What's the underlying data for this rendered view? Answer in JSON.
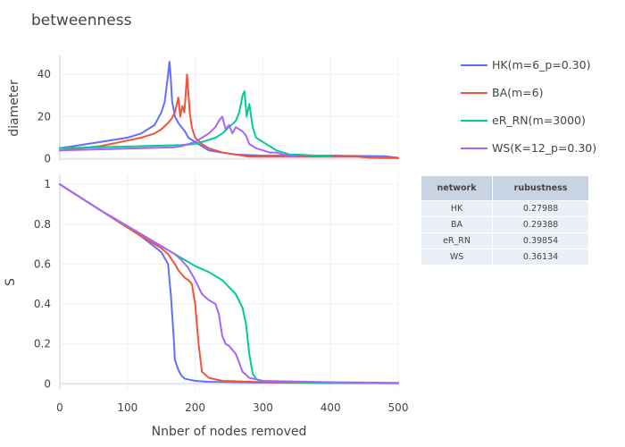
{
  "title": "betweenness",
  "colors": {
    "HK": "#636efa",
    "BA": "#ef553b",
    "eR_RN": "#00cc96",
    "WS": "#ab63fa",
    "grid": "#ebf0f8",
    "zeroline": "#e1e6ee",
    "table_header": "#c8d4e3",
    "table_cell": "#ebf0f8"
  },
  "legend": [
    {
      "name": "HK(m=6_p=0.30)",
      "color": "#636efa"
    },
    {
      "name": "BA(m=6)",
      "color": "#ef553b"
    },
    {
      "name": "eR_RN(m=3000)",
      "color": "#00cc96"
    },
    {
      "name": "WS(K=12_p=0.30)",
      "color": "#ab63fa"
    }
  ],
  "table": {
    "headers": [
      "network",
      "rubustness"
    ],
    "rows": [
      [
        "HK",
        "0.27988"
      ],
      [
        "BA",
        "0.29388"
      ],
      [
        "eR_RN",
        "0.39854"
      ],
      [
        "WS",
        "0.36134"
      ]
    ]
  },
  "chart_data": [
    {
      "type": "line",
      "xlabel": "",
      "ylabel": "diameter",
      "xlim": [
        0,
        500
      ],
      "ylim": [
        -1,
        49
      ],
      "xticks": [
        0,
        100,
        200,
        300,
        400,
        500
      ],
      "yticks": [
        0,
        20,
        40
      ],
      "grid": true,
      "series": [
        {
          "name": "HK(m=6_p=0.30)",
          "color": "#636efa",
          "x": [
            0,
            20,
            40,
            60,
            80,
            100,
            110,
            120,
            130,
            140,
            145,
            150,
            155,
            158,
            160,
            162,
            164,
            166,
            168,
            170,
            175,
            180,
            185,
            190,
            200,
            210,
            220,
            240,
            260,
            300,
            350,
            400,
            480,
            500
          ],
          "y": [
            5,
            6,
            7,
            8,
            9,
            10,
            11,
            12,
            14,
            16,
            19,
            22,
            27,
            35,
            40,
            46,
            38,
            27,
            24,
            20,
            17,
            15,
            13,
            10,
            8,
            6,
            4,
            3,
            2,
            1.5,
            1.5,
            1.5,
            1.2,
            0.5
          ]
        },
        {
          "name": "BA(m=6)",
          "color": "#ef553b",
          "x": [
            0,
            30,
            60,
            90,
            120,
            140,
            150,
            160,
            165,
            170,
            175,
            178,
            181,
            184,
            188,
            192,
            195,
            200,
            210,
            220,
            240,
            260,
            280,
            300,
            400,
            440,
            460,
            500
          ],
          "y": [
            4,
            5,
            6,
            8,
            10,
            12,
            14,
            17,
            19,
            22,
            29,
            20,
            25,
            22,
            40,
            22,
            15,
            10,
            7,
            5,
            3,
            2,
            1,
            1,
            1,
            1,
            0.5,
            0.3
          ]
        },
        {
          "name": "eR_RN(m=3000)",
          "color": "#00cc96",
          "x": [
            0,
            60,
            120,
            180,
            200,
            210,
            220,
            230,
            240,
            250,
            260,
            265,
            270,
            273,
            276,
            280,
            285,
            290,
            300,
            310,
            320,
            330,
            340,
            350,
            380,
            400
          ],
          "y": [
            5,
            5.5,
            6,
            6.5,
            7,
            8,
            9,
            10,
            12,
            15,
            18,
            22,
            30,
            32,
            20,
            26,
            15,
            10,
            8,
            6,
            4,
            3,
            2,
            2,
            1.5,
            1
          ]
        },
        {
          "name": "WS(K=12_p=0.30)",
          "color": "#ab63fa",
          "x": [
            0,
            60,
            120,
            170,
            180,
            190,
            200,
            210,
            220,
            230,
            235,
            240,
            245,
            250,
            255,
            260,
            265,
            270,
            275,
            280,
            290,
            300,
            310,
            320,
            330,
            350
          ],
          "y": [
            4,
            4.5,
            5,
            5.5,
            6,
            7,
            8,
            10,
            12,
            15,
            18,
            20,
            14,
            16,
            12,
            15,
            14,
            13,
            11,
            7,
            5,
            4,
            3,
            3,
            2,
            1
          ]
        }
      ]
    },
    {
      "type": "line",
      "xlabel": "Nnber of nodes removed",
      "ylabel": "S",
      "xlim": [
        0,
        500
      ],
      "ylim": [
        -0.03,
        1.05
      ],
      "xticks": [
        0,
        100,
        200,
        300,
        400,
        500
      ],
      "yticks": [
        0,
        0.2,
        0.4,
        0.6,
        0.8,
        1
      ],
      "grid": true,
      "series": [
        {
          "name": "HK(m=6_p=0.30)",
          "color": "#636efa",
          "x": [
            0,
            60,
            120,
            150,
            160,
            162,
            164,
            166,
            168,
            170,
            175,
            180,
            185,
            200,
            220,
            300,
            400,
            500
          ],
          "y": [
            1,
            0.87,
            0.74,
            0.66,
            0.6,
            0.52,
            0.45,
            0.35,
            0.25,
            0.12,
            0.07,
            0.04,
            0.025,
            0.015,
            0.01,
            0.006,
            0.004,
            0.003
          ]
        },
        {
          "name": "BA(m=6)",
          "color": "#ef553b",
          "x": [
            0,
            60,
            120,
            140,
            150,
            160,
            170,
            175,
            180,
            185,
            190,
            195,
            200,
            205,
            210,
            220,
            240,
            300,
            400,
            500
          ],
          "y": [
            1,
            0.87,
            0.74,
            0.7,
            0.68,
            0.65,
            0.6,
            0.57,
            0.55,
            0.53,
            0.52,
            0.5,
            0.4,
            0.2,
            0.06,
            0.03,
            0.015,
            0.008,
            0.005,
            0.003
          ]
        },
        {
          "name": "eR_RN(m=3000)",
          "color": "#00cc96",
          "x": [
            0,
            60,
            120,
            180,
            200,
            220,
            240,
            260,
            270,
            275,
            280,
            285,
            290,
            295,
            300,
            320,
            350,
            400,
            500
          ],
          "y": [
            1,
            0.87,
            0.75,
            0.63,
            0.59,
            0.56,
            0.52,
            0.45,
            0.38,
            0.3,
            0.15,
            0.05,
            0.025,
            0.015,
            0.012,
            0.01,
            0.008,
            0.005,
            0.003
          ]
        },
        {
          "name": "WS(K=12_p=0.30)",
          "color": "#ab63fa",
          "x": [
            0,
            60,
            120,
            150,
            170,
            180,
            190,
            195,
            200,
            210,
            220,
            225,
            230,
            235,
            240,
            245,
            250,
            260,
            270,
            280,
            300,
            400,
            500
          ],
          "y": [
            1,
            0.87,
            0.75,
            0.69,
            0.65,
            0.62,
            0.58,
            0.55,
            0.52,
            0.45,
            0.42,
            0.41,
            0.4,
            0.35,
            0.24,
            0.2,
            0.19,
            0.15,
            0.06,
            0.03,
            0.015,
            0.008,
            0.005
          ]
        }
      ]
    }
  ]
}
